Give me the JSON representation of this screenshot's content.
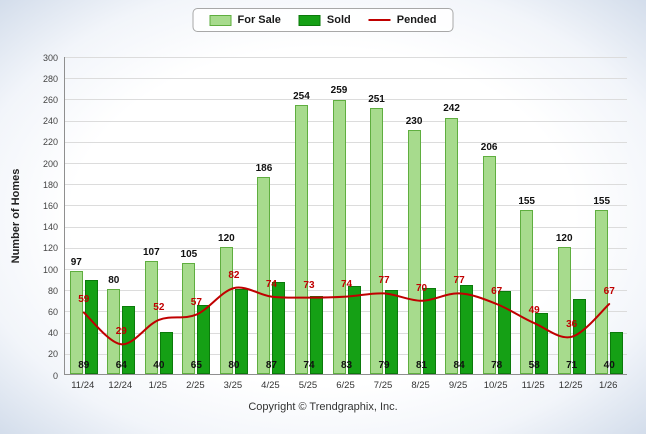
{
  "legend": {
    "for_sale": "For Sale",
    "sold": "Sold",
    "pended": "Pended"
  },
  "ylabel": "Number of Homes",
  "footer": "Copyright © Trendgraphix, Inc.",
  "colors": {
    "for_sale_fill": "#A7DB8D",
    "for_sale_border": "#5FAE3F",
    "sold_fill": "#15A015",
    "sold_border": "#0B7A0B",
    "pended_line": "#C00000",
    "grid": "#DCDCDC",
    "axis": "#8F8F8F"
  },
  "chart_data": {
    "type": "bar",
    "categories": [
      "11/24",
      "12/24",
      "1/25",
      "2/25",
      "3/25",
      "4/25",
      "5/25",
      "6/25",
      "7/25",
      "8/25",
      "9/25",
      "10/25",
      "11/25",
      "12/25",
      "1/26"
    ],
    "series": [
      {
        "name": "For Sale",
        "type": "bar",
        "values": [
          97,
          80,
          107,
          105,
          120,
          186,
          254,
          259,
          251,
          230,
          242,
          206,
          155,
          120,
          155
        ]
      },
      {
        "name": "Sold",
        "type": "bar",
        "values": [
          89,
          64,
          40,
          65,
          80,
          87,
          74,
          83,
          79,
          81,
          84,
          78,
          58,
          71,
          40
        ]
      },
      {
        "name": "Pended",
        "type": "line",
        "values": [
          59,
          29,
          52,
          57,
          82,
          74,
          73,
          74,
          77,
          70,
          77,
          67,
          49,
          36,
          67
        ]
      }
    ],
    "title": "",
    "xlabel": "",
    "ylabel": "Number of Homes",
    "ylim": [
      0,
      300
    ],
    "ytick_step": 20,
    "grid": true,
    "legend_position": "top"
  }
}
